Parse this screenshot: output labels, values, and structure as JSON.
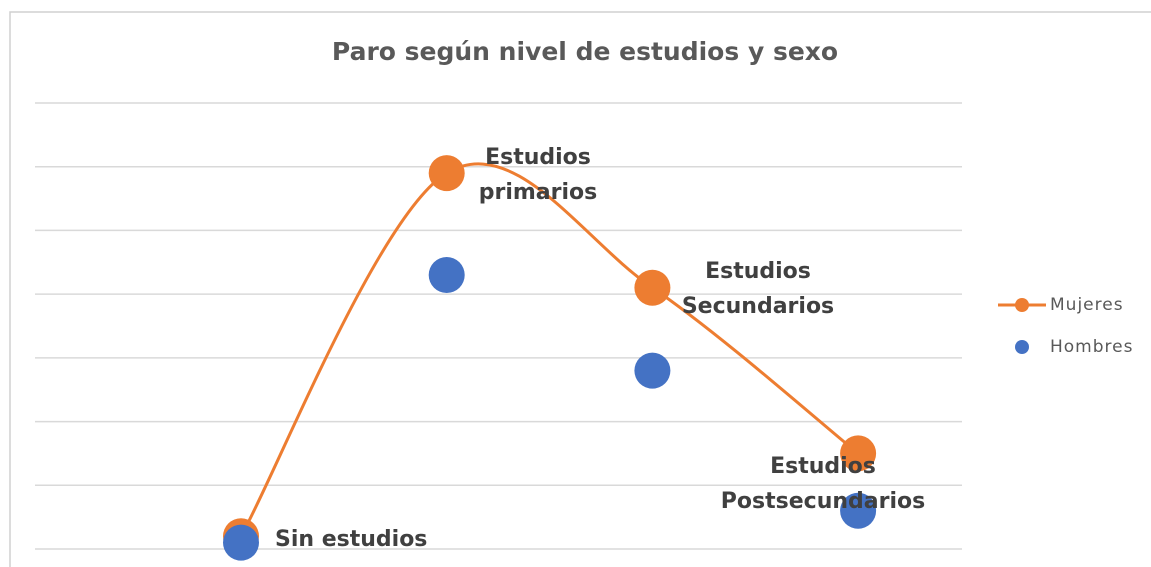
{
  "chart_data": {
    "type": "line",
    "title": "Paro según nivel de estudios y sexo",
    "categories": [
      "Sin estudios",
      "Estudios primarios",
      "Estudios Secundarios",
      "Estudios Postsecundarios"
    ],
    "series": [
      {
        "name": "Mujeres",
        "color": "#ed7d31",
        "values": [
          0.2,
          5.9,
          4.1,
          1.5
        ],
        "smooth": true,
        "line": true
      },
      {
        "name": "Hombres",
        "color": "#4472c4",
        "values": [
          0.1,
          4.3,
          2.8,
          0.6
        ],
        "line": false
      }
    ],
    "ylim": [
      0,
      7
    ],
    "yticks": [
      0,
      1,
      2,
      3,
      4,
      5,
      6,
      7
    ],
    "grid": true,
    "legend": "right"
  }
}
